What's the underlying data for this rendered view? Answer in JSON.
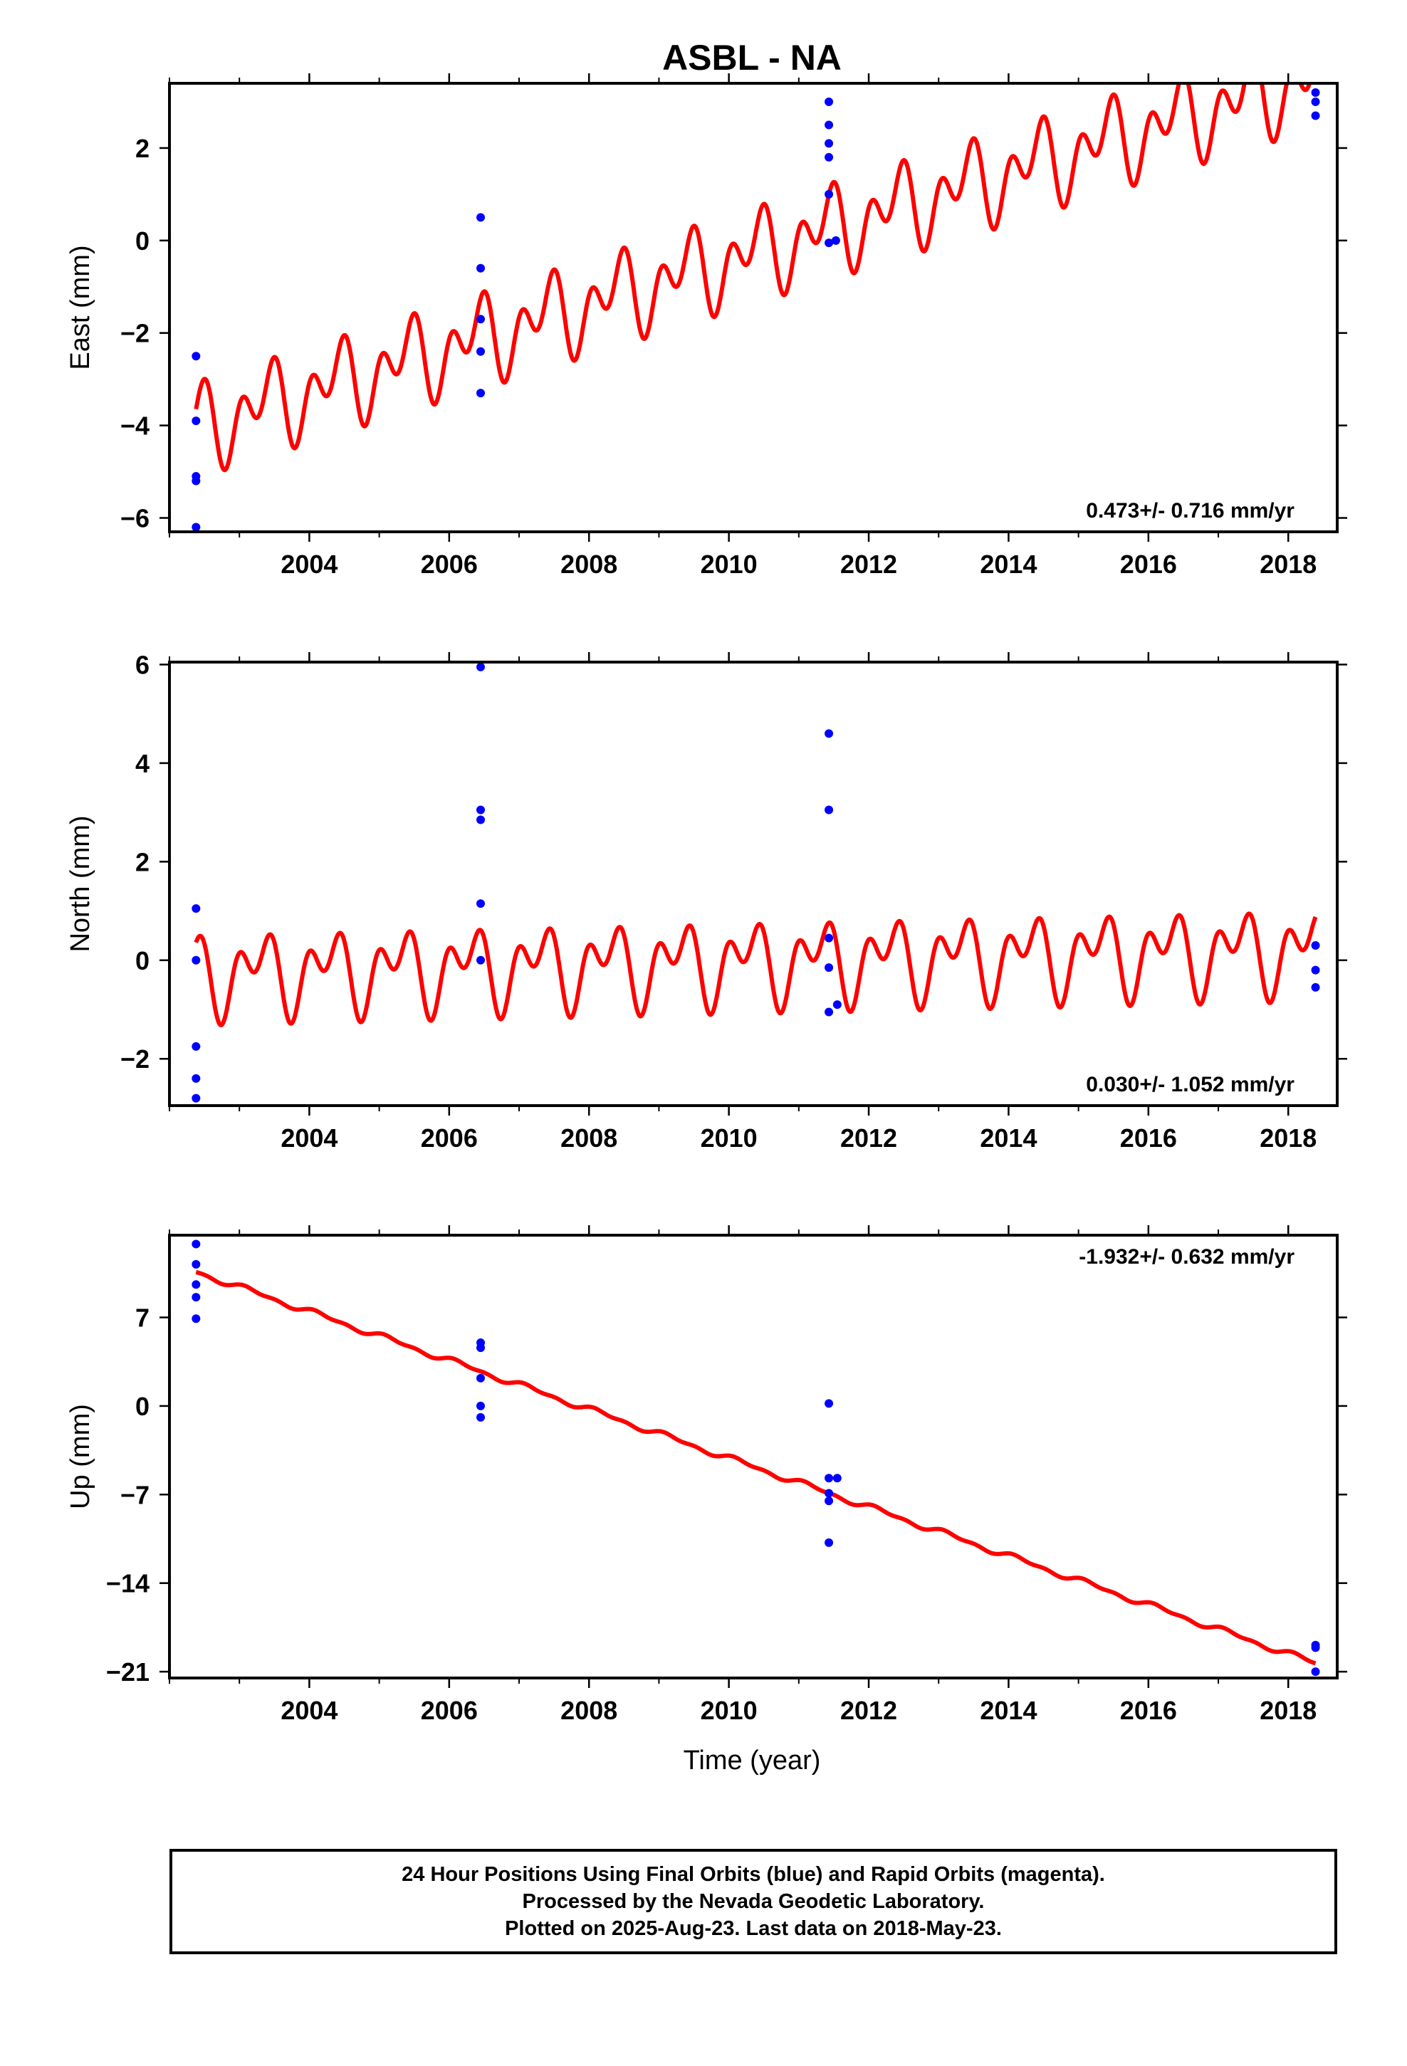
{
  "chart_data": [
    {
      "type": "line",
      "title": "ASBL - NA",
      "ylabel": "East (mm)",
      "xlabel": "",
      "xlim": [
        2002.0,
        2018.7
      ],
      "ylim": [
        -6.3,
        3.4
      ],
      "xticks": [
        2004,
        2006,
        2008,
        2010,
        2012,
        2014,
        2016,
        2018
      ],
      "yticks": [
        -6,
        -4,
        -2,
        0,
        2
      ],
      "grid": false,
      "annotation": "0.473+/- 0.716 mm/yr",
      "annotation_position": "bottom-right",
      "model": {
        "color": "#ff0000",
        "t_start": 2002.38,
        "t_end": 2018.39,
        "ref_year": 2002.38,
        "intercept": -4.05,
        "slope": 0.473,
        "annual": [
          0.4,
          -0.4
        ],
        "semiannual": [
          0.2,
          0.6
        ]
      },
      "points": {
        "color": "#0000ff",
        "x": [
          2002.38,
          2002.38,
          2002.38,
          2002.38,
          2002.38,
          2006.45,
          2006.45,
          2006.45,
          2006.45,
          2006.45,
          2011.43,
          2011.43,
          2011.43,
          2011.43,
          2011.43,
          2011.43,
          2011.53,
          2018.39,
          2018.39,
          2018.39
        ],
        "y": [
          -2.5,
          -3.9,
          -5.1,
          -5.2,
          -6.2,
          0.5,
          -0.6,
          -1.7,
          -2.4,
          -3.3,
          3.0,
          2.5,
          2.1,
          1.8,
          1.0,
          -0.05,
          0.0,
          3.2,
          3.0,
          2.7
        ]
      }
    },
    {
      "type": "line",
      "title": "",
      "ylabel": "North (mm)",
      "xlabel": "",
      "xlim": [
        2002.0,
        2018.7
      ],
      "ylim": [
        -2.95,
        6.05
      ],
      "xticks": [
        2004,
        2006,
        2008,
        2010,
        2012,
        2014,
        2016,
        2018
      ],
      "yticks": [
        -2,
        0,
        2,
        4,
        6
      ],
      "grid": false,
      "annotation": "0.030+/- 1.052 mm/yr",
      "annotation_position": "bottom-right",
      "model": {
        "color": "#ff0000",
        "t_start": 2002.38,
        "t_end": 2018.39,
        "ref_year": 2002.38,
        "intercept": -0.27,
        "slope": 0.03,
        "annual": [
          0.55,
          -0.1
        ],
        "semiannual": [
          -0.15,
          0.5
        ]
      },
      "points": {
        "color": "#0000ff",
        "x": [
          2002.38,
          2002.38,
          2002.38,
          2002.38,
          2002.38,
          2006.45,
          2006.45,
          2006.45,
          2006.45,
          2006.45,
          2011.43,
          2011.43,
          2011.43,
          2011.43,
          2011.43,
          2011.55,
          2018.39,
          2018.39,
          2018.39
        ],
        "y": [
          1.05,
          0.0,
          -1.75,
          -2.4,
          -2.8,
          5.95,
          3.05,
          2.85,
          1.15,
          0.0,
          4.6,
          3.05,
          0.45,
          -0.15,
          -1.05,
          -0.9,
          0.3,
          -0.2,
          -0.55
        ]
      }
    },
    {
      "type": "line",
      "title": "",
      "ylabel": "Up (mm)",
      "xlabel": "Time (year)",
      "xlim": [
        2002.0,
        2018.7
      ],
      "ylim": [
        -21.5,
        13.5
      ],
      "xticks": [
        2004,
        2006,
        2008,
        2010,
        2012,
        2014,
        2016,
        2018
      ],
      "yticks": [
        -21,
        -14,
        -7,
        0,
        7
      ],
      "grid": false,
      "annotation": "-1.932+/- 0.632 mm/yr",
      "annotation_position": "top-right",
      "model": {
        "color": "#ff0000",
        "t_start": 2002.38,
        "t_end": 2018.39,
        "ref_year": 2002.38,
        "intercept": 10.6,
        "slope": -1.932,
        "annual": [
          0.15,
          0.1
        ],
        "semiannual": [
          0.05,
          0.1
        ]
      },
      "points": {
        "color": "#0000ff",
        "x": [
          2002.38,
          2002.38,
          2002.38,
          2002.38,
          2002.38,
          2006.45,
          2006.45,
          2006.45,
          2006.45,
          2006.45,
          2011.43,
          2011.43,
          2011.43,
          2011.43,
          2011.43,
          2011.55,
          2018.39,
          2018.39,
          2018.39
        ],
        "y": [
          12.8,
          11.2,
          9.6,
          8.6,
          6.9,
          5.0,
          4.6,
          2.2,
          0.0,
          -0.9,
          0.2,
          -5.7,
          -6.9,
          -7.5,
          -10.8,
          -5.7,
          -18.9,
          -19.1,
          -21.0
        ]
      }
    }
  ],
  "footer": {
    "line1": "24 Hour Positions Using Final Orbits (blue) and Rapid Orbits (magenta).",
    "line2": "Processed by the Nevada Geodetic Laboratory.",
    "line3": "Plotted on 2025-Aug-23. Last data on 2018-May-23."
  }
}
